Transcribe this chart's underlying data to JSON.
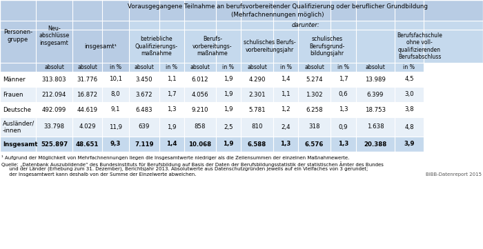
{
  "title_line1": "Vorausgegangene Teilnahme an berufsvorbereitender Qualifizierung oder beruflicher Grundbildung",
  "title_line2": "(Mehrfachnennungen möglich)",
  "darunter": "darunter:",
  "footnote1": "¹ Aufgrund der Möglichkeit von Mehrfachnennungen liegen die Insgesamtwerte niedriger als die Zeilensummen der einzelnen Maßnahmewerte.",
  "footnote2": "Quelle: „Datenbank Auszubildende“ des Bundesinstituts für Berufsbildung auf Basis der Daten der Berufsbildungsstatistik der statistischen Ämter des Bundes",
  "footnote3": "     und der Länder (Erhebung zum 31. Dezember), Berichtsjahr 2013. Absolutwerte aus Datenschutzgründen jeweils auf ein Vielfaches von 3 gerundet;",
  "footnote4": "     der Insgesamtwert kann deshalb von der Summe der Einzelwerte abweichen.",
  "watermark": "BIBB-Datenreport 2015",
  "rows": [
    [
      "Männer",
      "313.803",
      "31.776",
      "10,1",
      "3.450",
      "1,1",
      "6.012",
      "1,9",
      "4.290",
      "1,4",
      "5.274",
      "1,7",
      "13.989",
      "4,5"
    ],
    [
      "Frauen",
      "212.094",
      "16.872",
      "8,0",
      "3.672",
      "1,7",
      "4.056",
      "1,9",
      "2.301",
      "1,1",
      "1.302",
      "0,6",
      "6.399",
      "3,0"
    ],
    [
      "Deutsche",
      "492.099",
      "44.619",
      "9,1",
      "6.483",
      "1,3",
      "9.210",
      "1,9",
      "5.781",
      "1,2",
      "6.258",
      "1,3",
      "18.753",
      "3,8"
    ],
    [
      "Ausländer/\n-innen",
      "33.798",
      "4.029",
      "11,9",
      "639",
      "1,9",
      "858",
      "2,5",
      "810",
      "2,4",
      "318",
      "0,9",
      "1.638",
      "4,8"
    ],
    [
      "Insgesamt",
      "525.897",
      "48.651",
      "9,3",
      "7.119",
      "1,4",
      "10.068",
      "1,9",
      "6.588",
      "1,3",
      "6.576",
      "1,3",
      "20.388",
      "3,9"
    ]
  ],
  "header_bg": "#b8cce4",
  "subheader_bg": "#c5d9ed",
  "row_bg_even": "#e8f0f8",
  "row_bg_odd": "#ffffff",
  "last_row_bg": "#c5d9ed"
}
